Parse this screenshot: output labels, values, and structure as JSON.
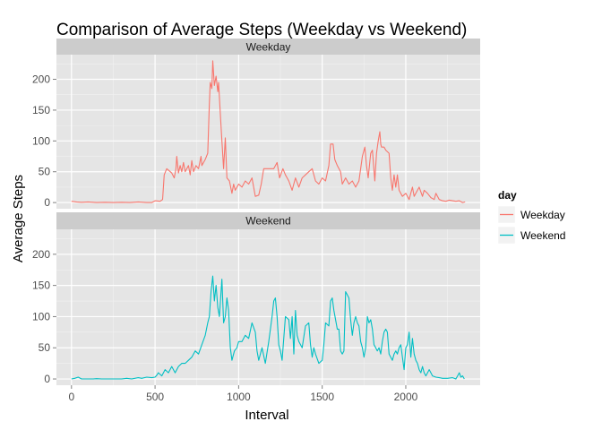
{
  "chart_data": {
    "type": "line",
    "title": "Comparison of Average Steps (Weekday vs Weekend)",
    "xlabel": "Interval",
    "ylabel": "Average Steps",
    "xlim": [
      -90,
      2445
    ],
    "ylim": [
      -10,
      240
    ],
    "x_ticks": [
      0,
      500,
      1000,
      1500,
      2000
    ],
    "y_ticks": [
      0,
      50,
      100,
      150,
      200
    ],
    "grid": true,
    "legend": {
      "title": "day",
      "position": "right"
    },
    "panels": [
      "Weekday",
      "Weekend"
    ],
    "series": [
      {
        "name": "Weekday",
        "color": "#F8766D",
        "panel": "Weekday",
        "points": [
          [
            0,
            2
          ],
          [
            30,
            1
          ],
          [
            60,
            0.5
          ],
          [
            100,
            1
          ],
          [
            150,
            0
          ],
          [
            200,
            0.5
          ],
          [
            250,
            0
          ],
          [
            300,
            0.5
          ],
          [
            350,
            0
          ],
          [
            400,
            1
          ],
          [
            450,
            0
          ],
          [
            480,
            0
          ],
          [
            500,
            3
          ],
          [
            530,
            2
          ],
          [
            545,
            5
          ],
          [
            555,
            45
          ],
          [
            570,
            55
          ],
          [
            600,
            48
          ],
          [
            615,
            40
          ],
          [
            625,
            55
          ],
          [
            630,
            75
          ],
          [
            640,
            48
          ],
          [
            650,
            60
          ],
          [
            660,
            50
          ],
          [
            670,
            65
          ],
          [
            680,
            50
          ],
          [
            700,
            60
          ],
          [
            710,
            45
          ],
          [
            720,
            68
          ],
          [
            730,
            50
          ],
          [
            745,
            60
          ],
          [
            760,
            55
          ],
          [
            775,
            75
          ],
          [
            780,
            60
          ],
          [
            800,
            70
          ],
          [
            815,
            80
          ],
          [
            825,
            160
          ],
          [
            830,
            195
          ],
          [
            840,
            185
          ],
          [
            845,
            230
          ],
          [
            855,
            190
          ],
          [
            865,
            205
          ],
          [
            875,
            180
          ],
          [
            880,
            195
          ],
          [
            890,
            145
          ],
          [
            900,
            100
          ],
          [
            910,
            55
          ],
          [
            920,
            105
          ],
          [
            930,
            40
          ],
          [
            945,
            35
          ],
          [
            960,
            15
          ],
          [
            970,
            30
          ],
          [
            980,
            20
          ],
          [
            1000,
            30
          ],
          [
            1020,
            25
          ],
          [
            1040,
            35
          ],
          [
            1060,
            30
          ],
          [
            1080,
            40
          ],
          [
            1100,
            10
          ],
          [
            1120,
            12
          ],
          [
            1135,
            30
          ],
          [
            1150,
            55
          ],
          [
            1170,
            55
          ],
          [
            1190,
            55
          ],
          [
            1210,
            55
          ],
          [
            1230,
            65
          ],
          [
            1245,
            40
          ],
          [
            1265,
            55
          ],
          [
            1280,
            45
          ],
          [
            1300,
            35
          ],
          [
            1320,
            20
          ],
          [
            1340,
            40
          ],
          [
            1360,
            25
          ],
          [
            1380,
            40
          ],
          [
            1400,
            45
          ],
          [
            1420,
            50
          ],
          [
            1440,
            55
          ],
          [
            1460,
            35
          ],
          [
            1480,
            30
          ],
          [
            1500,
            40
          ],
          [
            1520,
            35
          ],
          [
            1540,
            60
          ],
          [
            1550,
            95
          ],
          [
            1565,
            95
          ],
          [
            1575,
            70
          ],
          [
            1590,
            60
          ],
          [
            1610,
            50
          ],
          [
            1620,
            30
          ],
          [
            1640,
            40
          ],
          [
            1660,
            30
          ],
          [
            1680,
            35
          ],
          [
            1700,
            25
          ],
          [
            1720,
            35
          ],
          [
            1740,
            75
          ],
          [
            1755,
            90
          ],
          [
            1765,
            60
          ],
          [
            1775,
            40
          ],
          [
            1790,
            80
          ],
          [
            1800,
            85
          ],
          [
            1815,
            35
          ],
          [
            1825,
            80
          ],
          [
            1835,
            100
          ],
          [
            1845,
            115
          ],
          [
            1850,
            95
          ],
          [
            1855,
            90
          ],
          [
            1870,
            90
          ],
          [
            1880,
            85
          ],
          [
            1900,
            80
          ],
          [
            1910,
            40
          ],
          [
            1920,
            20
          ],
          [
            1930,
            45
          ],
          [
            1940,
            25
          ],
          [
            1950,
            45
          ],
          [
            1960,
            20
          ],
          [
            1980,
            10
          ],
          [
            2000,
            15
          ],
          [
            2020,
            5
          ],
          [
            2040,
            25
          ],
          [
            2050,
            10
          ],
          [
            2070,
            20
          ],
          [
            2080,
            25
          ],
          [
            2100,
            10
          ],
          [
            2110,
            20
          ],
          [
            2130,
            15
          ],
          [
            2150,
            8
          ],
          [
            2170,
            5
          ],
          [
            2180,
            15
          ],
          [
            2200,
            5
          ],
          [
            2220,
            3
          ],
          [
            2240,
            2
          ],
          [
            2260,
            4
          ],
          [
            2280,
            3
          ],
          [
            2300,
            2
          ],
          [
            2320,
            3
          ],
          [
            2340,
            0
          ],
          [
            2355,
            1
          ]
        ]
      },
      {
        "name": "Weekend",
        "color": "#00BFC4",
        "panel": "Weekend",
        "points": [
          [
            0,
            0
          ],
          [
            20,
            1
          ],
          [
            40,
            3
          ],
          [
            60,
            0
          ],
          [
            100,
            0
          ],
          [
            130,
            0
          ],
          [
            150,
            0.5
          ],
          [
            180,
            0
          ],
          [
            200,
            0
          ],
          [
            250,
            0
          ],
          [
            300,
            0
          ],
          [
            330,
            1
          ],
          [
            360,
            0
          ],
          [
            400,
            2
          ],
          [
            420,
            1
          ],
          [
            450,
            3
          ],
          [
            480,
            2
          ],
          [
            500,
            3
          ],
          [
            510,
            6
          ],
          [
            520,
            10
          ],
          [
            540,
            5
          ],
          [
            560,
            15
          ],
          [
            580,
            10
          ],
          [
            600,
            20
          ],
          [
            620,
            10
          ],
          [
            640,
            20
          ],
          [
            660,
            25
          ],
          [
            680,
            25
          ],
          [
            700,
            30
          ],
          [
            720,
            35
          ],
          [
            740,
            45
          ],
          [
            760,
            40
          ],
          [
            780,
            55
          ],
          [
            800,
            70
          ],
          [
            815,
            90
          ],
          [
            825,
            100
          ],
          [
            835,
            140
          ],
          [
            845,
            165
          ],
          [
            855,
            125
          ],
          [
            865,
            150
          ],
          [
            875,
            115
          ],
          [
            885,
            100
          ],
          [
            900,
            160
          ],
          [
            910,
            90
          ],
          [
            920,
            100
          ],
          [
            930,
            130
          ],
          [
            940,
            110
          ],
          [
            950,
            50
          ],
          [
            960,
            30
          ],
          [
            975,
            45
          ],
          [
            990,
            50
          ],
          [
            1000,
            60
          ],
          [
            1020,
            60
          ],
          [
            1040,
            70
          ],
          [
            1060,
            65
          ],
          [
            1080,
            90
          ],
          [
            1100,
            75
          ],
          [
            1110,
            45
          ],
          [
            1120,
            30
          ],
          [
            1140,
            50
          ],
          [
            1160,
            25
          ],
          [
            1180,
            60
          ],
          [
            1200,
            100
          ],
          [
            1210,
            125
          ],
          [
            1220,
            130
          ],
          [
            1230,
            100
          ],
          [
            1240,
            55
          ],
          [
            1250,
            45
          ],
          [
            1260,
            30
          ],
          [
            1280,
            100
          ],
          [
            1300,
            95
          ],
          [
            1310,
            65
          ],
          [
            1320,
            100
          ],
          [
            1330,
            40
          ],
          [
            1340,
            110
          ],
          [
            1350,
            70
          ],
          [
            1360,
            60
          ],
          [
            1380,
            50
          ],
          [
            1400,
            85
          ],
          [
            1420,
            90
          ],
          [
            1430,
            55
          ],
          [
            1440,
            35
          ],
          [
            1450,
            50
          ],
          [
            1460,
            40
          ],
          [
            1480,
            25
          ],
          [
            1500,
            30
          ],
          [
            1510,
            55
          ],
          [
            1520,
            90
          ],
          [
            1540,
            85
          ],
          [
            1550,
            125
          ],
          [
            1560,
            130
          ],
          [
            1570,
            110
          ],
          [
            1580,
            95
          ],
          [
            1590,
            80
          ],
          [
            1600,
            80
          ],
          [
            1610,
            45
          ],
          [
            1620,
            40
          ],
          [
            1630,
            45
          ],
          [
            1640,
            140
          ],
          [
            1650,
            135
          ],
          [
            1660,
            130
          ],
          [
            1670,
            95
          ],
          [
            1680,
            70
          ],
          [
            1690,
            90
          ],
          [
            1700,
            100
          ],
          [
            1710,
            90
          ],
          [
            1720,
            85
          ],
          [
            1730,
            60
          ],
          [
            1740,
            50
          ],
          [
            1750,
            35
          ],
          [
            1760,
            50
          ],
          [
            1770,
            100
          ],
          [
            1780,
            90
          ],
          [
            1790,
            95
          ],
          [
            1800,
            80
          ],
          [
            1810,
            55
          ],
          [
            1820,
            50
          ],
          [
            1830,
            45
          ],
          [
            1840,
            50
          ],
          [
            1850,
            40
          ],
          [
            1860,
            60
          ],
          [
            1870,
            75
          ],
          [
            1880,
            80
          ],
          [
            1890,
            75
          ],
          [
            1900,
            40
          ],
          [
            1910,
            35
          ],
          [
            1920,
            30
          ],
          [
            1930,
            40
          ],
          [
            1940,
            45
          ],
          [
            1950,
            40
          ],
          [
            1960,
            50
          ],
          [
            1970,
            55
          ],
          [
            1980,
            35
          ],
          [
            1990,
            15
          ],
          [
            2000,
            50
          ],
          [
            2010,
            55
          ],
          [
            2020,
            75
          ],
          [
            2030,
            35
          ],
          [
            2040,
            65
          ],
          [
            2050,
            40
          ],
          [
            2060,
            30
          ],
          [
            2070,
            25
          ],
          [
            2080,
            15
          ],
          [
            2090,
            10
          ],
          [
            2100,
            20
          ],
          [
            2110,
            10
          ],
          [
            2120,
            5
          ],
          [
            2140,
            15
          ],
          [
            2150,
            10
          ],
          [
            2160,
            5
          ],
          [
            2180,
            3
          ],
          [
            2200,
            2
          ],
          [
            2220,
            1
          ],
          [
            2250,
            1
          ],
          [
            2280,
            2
          ],
          [
            2300,
            0
          ],
          [
            2310,
            5
          ],
          [
            2320,
            10
          ],
          [
            2330,
            3
          ],
          [
            2340,
            5
          ],
          [
            2350,
            0
          ]
        ]
      }
    ]
  }
}
